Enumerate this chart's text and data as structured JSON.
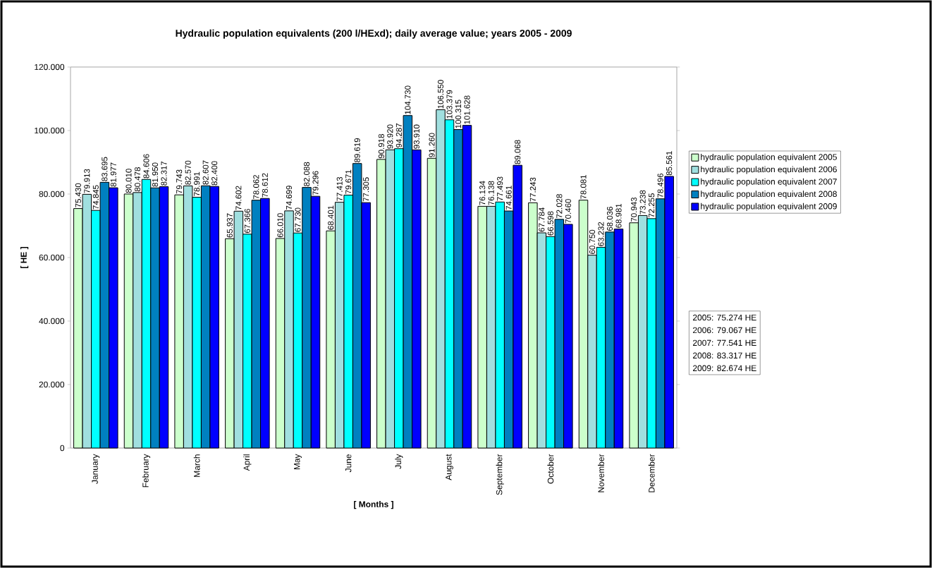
{
  "chart_data": {
    "type": "bar",
    "title": "Hydraulic population equivalents (200 l/HExd); daily average value; years 2005 - 2009",
    "xlabel": "[ Months ]",
    "ylabel": "[ HE ]",
    "categories": [
      "January",
      "February",
      "March",
      "April",
      "May",
      "June",
      "July",
      "August",
      "September",
      "October",
      "November",
      "December"
    ],
    "series": [
      {
        "name": "hydraulic population equivalent 2005",
        "color": "#ccffcc",
        "values": [
          75430,
          80010,
          79743,
          65937,
          66010,
          68401,
          90918,
          91260,
          76134,
          77243,
          78081,
          70943
        ],
        "value_labels": [
          "75.430",
          "80.010",
          "79.743",
          "65.937",
          "66.010",
          "68.401",
          "90.918",
          "91.260",
          "76.134",
          "77.243",
          "78.081",
          "70.943"
        ]
      },
      {
        "name": "hydraulic population equivalent 2006",
        "color": "#a0dfdf",
        "values": [
          79913,
          80478,
          82570,
          74602,
          74699,
          77413,
          93920,
          106550,
          76138,
          67784,
          60750,
          73238
        ],
        "value_labels": [
          "79.913",
          "80.478",
          "82.570",
          "74.602",
          "74.699",
          "77.413",
          "93.920",
          "106.550",
          "76.138",
          "67.784",
          "60.750",
          "73.238"
        ]
      },
      {
        "name": "hydraulic population equivalent 2007",
        "color": "#00ffff",
        "values": [
          74845,
          84606,
          78991,
          67366,
          67730,
          79671,
          94287,
          103379,
          77493,
          66598,
          63232,
          72255
        ],
        "value_labels": [
          "74.845",
          "84.606",
          "78.991",
          "67.366",
          "67.730",
          "79.671",
          "94.287",
          "103.379",
          "77.493",
          "66.598",
          "63.232",
          "72.255"
        ]
      },
      {
        "name": "hydraulic population equivalent 2008",
        "color": "#0080c0",
        "values": [
          83695,
          81950,
          82607,
          78062,
          82088,
          89619,
          104730,
          100315,
          74661,
          72028,
          68036,
          78496
        ],
        "value_labels": [
          "83.695",
          "81.950",
          "82.607",
          "78.062",
          "82.088",
          "89.619",
          "104.730",
          "100.315",
          "74.661",
          "72.028",
          "68.036",
          "78.496"
        ]
      },
      {
        "name": "hydraulic population equivalent 2009",
        "color": "#0000ff",
        "values": [
          81977,
          82317,
          82400,
          78612,
          79296,
          77305,
          93910,
          101628,
          89068,
          70460,
          68981,
          85561
        ],
        "value_labels": [
          "81.977",
          "82.317",
          "82.400",
          "78.612",
          "79.296",
          "77.305",
          "93.910",
          "101.628",
          "89.068",
          "70.460",
          "68.981",
          "85.561"
        ]
      }
    ],
    "ylim": [
      0,
      120000
    ],
    "yticks": [
      0,
      {
        "value": 20000,
        "label": "20.000"
      },
      {
        "value": 40000,
        "label": "40.000"
      },
      {
        "value": 60000,
        "label": "60.000"
      },
      {
        "value": 80000,
        "label": "80.000"
      },
      {
        "value": 100000,
        "label": "100.000"
      },
      {
        "value": 120000,
        "label": "120.000"
      }
    ],
    "legend": "right",
    "annotations": [
      "2005: 75.274 HE",
      "2006: 79.067 HE",
      "2007: 77.541 HE",
      "2008: 83.317 HE",
      "2009: 82.674 HE"
    ]
  }
}
